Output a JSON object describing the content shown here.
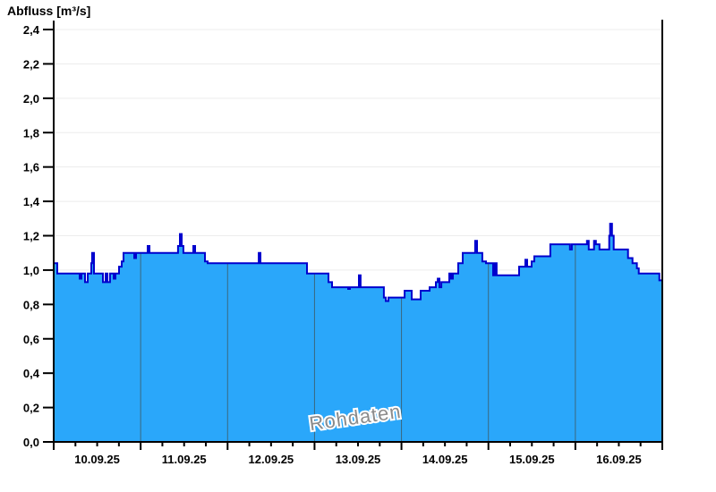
{
  "title": "Abfluss [m³/s]",
  "watermark": "Rohdaten",
  "colors": {
    "area_fill": "#2aa7fa",
    "series_line": "#0000cd",
    "day_separator": "#3a687f",
    "gridline": "#ececec",
    "axis": "#000000",
    "watermark_text": "#8b8b8b",
    "watermark_halo": "#ffffff"
  },
  "chart_data": {
    "type": "area",
    "title": "Abfluss [m³/s]",
    "ylabel": "Abfluss [m³/s]",
    "unit": "m³/s",
    "interpolation": "step-after",
    "grid": "horizontal",
    "watermark": "Rohdaten",
    "ylim": [
      0.0,
      2.4
    ],
    "ytick_step": 0.2,
    "ytick_labels": [
      "0,0",
      "0,2",
      "0,4",
      "0,6",
      "0,8",
      "1,0",
      "1,2",
      "1,4",
      "1,6",
      "1,8",
      "2,0",
      "2,2",
      "2,4"
    ],
    "x_days": 7,
    "x_start": "10.09.25 00:00",
    "x_end": "17.09.25 00:00",
    "xtick_labels": [
      "10.09.25",
      "11.09.25",
      "12.09.25",
      "13.09.25",
      "14.09.25",
      "15.09.25",
      "16.09.25"
    ],
    "minor_tick_hours": 6,
    "series": [
      {
        "name": "Abfluss Rohdaten",
        "points_format": "[days_since_10.09.25_00:00, m3_per_s] step holds until next point",
        "points": [
          [
            0.0,
            1.04
          ],
          [
            0.041,
            0.98
          ],
          [
            0.299,
            0.95
          ],
          [
            0.319,
            0.98
          ],
          [
            0.36,
            0.93
          ],
          [
            0.391,
            0.98
          ],
          [
            0.432,
            1.04
          ],
          [
            0.442,
            1.1
          ],
          [
            0.463,
            0.98
          ],
          [
            0.566,
            0.93
          ],
          [
            0.597,
            0.98
          ],
          [
            0.617,
            0.93
          ],
          [
            0.648,
            0.98
          ],
          [
            0.69,
            0.95
          ],
          [
            0.71,
            0.98
          ],
          [
            0.751,
            1.02
          ],
          [
            0.782,
            1.05
          ],
          [
            0.803,
            1.1
          ],
          [
            0.926,
            1.07
          ],
          [
            0.947,
            1.1
          ],
          [
            1.081,
            1.14
          ],
          [
            1.101,
            1.1
          ],
          [
            1.43,
            1.14
          ],
          [
            1.451,
            1.21
          ],
          [
            1.472,
            1.14
          ],
          [
            1.492,
            1.1
          ],
          [
            1.606,
            1.14
          ],
          [
            1.626,
            1.1
          ],
          [
            1.74,
            1.05
          ],
          [
            1.771,
            1.04
          ],
          [
            2.358,
            1.1
          ],
          [
            2.378,
            1.04
          ],
          [
            2.913,
            0.98
          ],
          [
            3.16,
            0.93
          ],
          [
            3.201,
            0.9
          ],
          [
            3.387,
            0.89
          ],
          [
            3.407,
            0.9
          ],
          [
            3.51,
            0.97
          ],
          [
            3.53,
            0.9
          ],
          [
            3.798,
            0.84
          ],
          [
            3.819,
            0.82
          ],
          [
            3.85,
            0.84
          ],
          [
            4.036,
            0.88
          ],
          [
            4.118,
            0.83
          ],
          [
            4.221,
            0.88
          ],
          [
            4.324,
            0.9
          ],
          [
            4.396,
            0.93
          ],
          [
            4.417,
            0.95
          ],
          [
            4.437,
            0.9
          ],
          [
            4.458,
            0.93
          ],
          [
            4.55,
            0.98
          ],
          [
            4.571,
            0.95
          ],
          [
            4.591,
            0.98
          ],
          [
            4.653,
            1.04
          ],
          [
            4.704,
            1.1
          ],
          [
            4.848,
            1.17
          ],
          [
            4.869,
            1.1
          ],
          [
            4.93,
            1.05
          ],
          [
            4.972,
            1.04
          ],
          [
            5.054,
            0.97
          ],
          [
            5.075,
            1.04
          ],
          [
            5.095,
            0.97
          ],
          [
            5.353,
            1.02
          ],
          [
            5.425,
            1.06
          ],
          [
            5.446,
            1.02
          ],
          [
            5.497,
            1.05
          ],
          [
            5.528,
            1.08
          ],
          [
            5.712,
            1.15
          ],
          [
            5.938,
            1.12
          ],
          [
            5.959,
            1.15
          ],
          [
            6.133,
            1.17
          ],
          [
            6.154,
            1.12
          ],
          [
            6.215,
            1.17
          ],
          [
            6.236,
            1.15
          ],
          [
            6.277,
            1.12
          ],
          [
            6.39,
            1.2
          ],
          [
            6.4,
            1.27
          ],
          [
            6.421,
            1.2
          ],
          [
            6.441,
            1.12
          ],
          [
            6.606,
            1.07
          ],
          [
            6.657,
            1.04
          ],
          [
            6.708,
            1.01
          ],
          [
            6.729,
            0.98
          ],
          [
            6.966,
            0.94
          ],
          [
            7.0,
            0.94
          ]
        ]
      }
    ]
  }
}
